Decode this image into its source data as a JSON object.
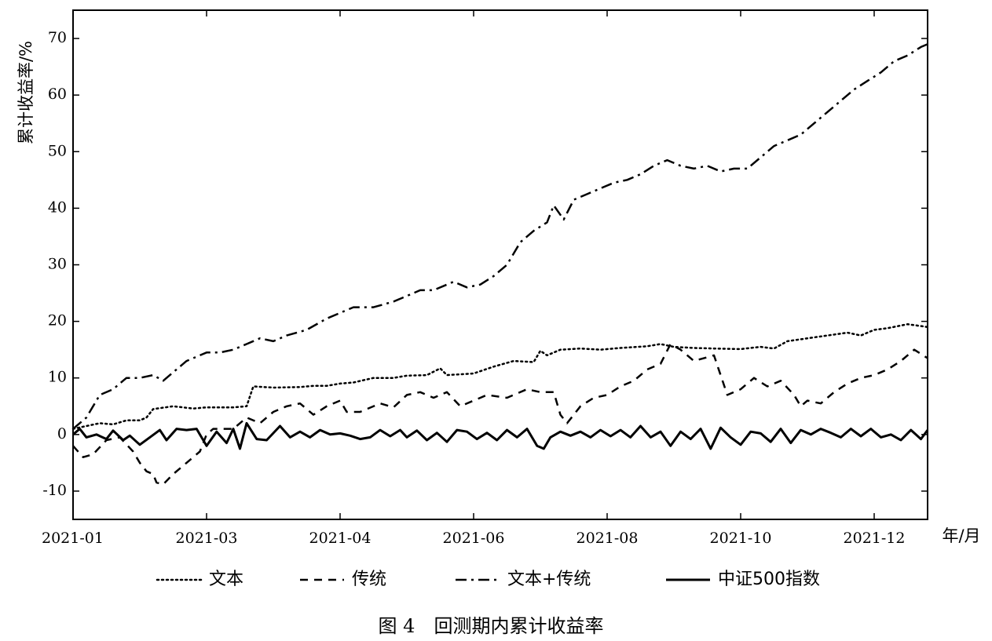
{
  "chart_data": {
    "type": "line",
    "title": "",
    "caption": "图 4　回测期内累计收益率",
    "xlabel": "年/月",
    "ylabel": "累计收益率/%",
    "ylim": [
      -15,
      75
    ],
    "xlim": [
      0,
      12.8
    ],
    "yticks": [
      -10,
      0,
      10,
      20,
      30,
      40,
      50,
      60,
      70
    ],
    "xticks": [
      {
        "value": 0,
        "label": "2021-01"
      },
      {
        "value": 2,
        "label": "2021-03"
      },
      {
        "value": 4,
        "label": "2021-04"
      },
      {
        "value": 6,
        "label": "2021-06"
      },
      {
        "value": 8,
        "label": "2021-08"
      },
      {
        "value": 10,
        "label": "2021-10"
      },
      {
        "value": 12,
        "label": "2021-12"
      }
    ],
    "grid": false,
    "legend_position": "bottom",
    "series": [
      {
        "name": "文本",
        "style": "dotted",
        "points": [
          [
            0,
            1
          ],
          [
            0.2,
            1.5
          ],
          [
            0.4,
            2
          ],
          [
            0.6,
            1.8
          ],
          [
            0.8,
            2.5
          ],
          [
            1.0,
            2.5
          ],
          [
            1.1,
            3
          ],
          [
            1.2,
            4.5
          ],
          [
            1.5,
            5
          ],
          [
            1.8,
            4.6
          ],
          [
            2.0,
            4.8
          ],
          [
            2.4,
            4.8
          ],
          [
            2.6,
            5
          ],
          [
            2.7,
            8.5
          ],
          [
            3.0,
            8.3
          ],
          [
            3.4,
            8.4
          ],
          [
            3.6,
            8.6
          ],
          [
            3.8,
            8.6
          ],
          [
            4.0,
            9.0
          ],
          [
            4.2,
            9.2
          ],
          [
            4.5,
            10
          ],
          [
            4.8,
            10
          ],
          [
            5.0,
            10.4
          ],
          [
            5.3,
            10.5
          ],
          [
            5.5,
            11.7
          ],
          [
            5.6,
            10.5
          ],
          [
            6.0,
            10.8
          ],
          [
            6.3,
            12
          ],
          [
            6.6,
            13
          ],
          [
            6.9,
            12.8
          ],
          [
            7.0,
            14.8
          ],
          [
            7.1,
            14
          ],
          [
            7.3,
            15
          ],
          [
            7.6,
            15.2
          ],
          [
            7.9,
            15.0
          ],
          [
            8.2,
            15.3
          ],
          [
            8.6,
            15.6
          ],
          [
            8.8,
            16
          ],
          [
            9.0,
            15.5
          ],
          [
            9.3,
            15.3
          ],
          [
            9.6,
            15.2
          ],
          [
            10.0,
            15.1
          ],
          [
            10.3,
            15.5
          ],
          [
            10.5,
            15.2
          ],
          [
            10.7,
            16.5
          ],
          [
            11.0,
            17
          ],
          [
            11.3,
            17.5
          ],
          [
            11.6,
            18
          ],
          [
            11.8,
            17.5
          ],
          [
            12.0,
            18.5
          ],
          [
            12.2,
            18.8
          ],
          [
            12.5,
            19.5
          ],
          [
            12.8,
            19
          ]
        ]
      },
      {
        "name": "传统",
        "style": "dashed",
        "points": [
          [
            0,
            -2
          ],
          [
            0.15,
            -4
          ],
          [
            0.3,
            -3.5
          ],
          [
            0.5,
            -1
          ],
          [
            0.7,
            -0.5
          ],
          [
            0.9,
            -3
          ],
          [
            1.0,
            -5
          ],
          [
            1.1,
            -6.5
          ],
          [
            1.2,
            -7
          ],
          [
            1.25,
            -8.5
          ],
          [
            1.35,
            -8.8
          ],
          [
            1.5,
            -7
          ],
          [
            1.7,
            -5
          ],
          [
            1.9,
            -3
          ],
          [
            2.0,
            0
          ],
          [
            2.1,
            1
          ],
          [
            2.4,
            1
          ],
          [
            2.6,
            3
          ],
          [
            2.8,
            2
          ],
          [
            3.0,
            4
          ],
          [
            3.2,
            5
          ],
          [
            3.4,
            5.5
          ],
          [
            3.6,
            3.5
          ],
          [
            3.8,
            5
          ],
          [
            4.0,
            6
          ],
          [
            4.1,
            4
          ],
          [
            4.3,
            4
          ],
          [
            4.6,
            5.5
          ],
          [
            4.8,
            4.8
          ],
          [
            5.0,
            7
          ],
          [
            5.2,
            7.5
          ],
          [
            5.4,
            6.5
          ],
          [
            5.6,
            7.5
          ],
          [
            5.8,
            5
          ],
          [
            6.0,
            6
          ],
          [
            6.2,
            7
          ],
          [
            6.5,
            6.5
          ],
          [
            6.8,
            8
          ],
          [
            7.0,
            7.5
          ],
          [
            7.2,
            7.5
          ],
          [
            7.3,
            3.5
          ],
          [
            7.4,
            2
          ],
          [
            7.6,
            5
          ],
          [
            7.8,
            6.5
          ],
          [
            8.0,
            7
          ],
          [
            8.2,
            8.5
          ],
          [
            8.4,
            9.5
          ],
          [
            8.6,
            11.5
          ],
          [
            8.8,
            12.5
          ],
          [
            8.95,
            16
          ],
          [
            9.1,
            15
          ],
          [
            9.3,
            13
          ],
          [
            9.6,
            14
          ],
          [
            9.8,
            7
          ],
          [
            10.0,
            8
          ],
          [
            10.2,
            10
          ],
          [
            10.4,
            8.5
          ],
          [
            10.6,
            9.5
          ],
          [
            10.8,
            7
          ],
          [
            10.9,
            5
          ],
          [
            11.0,
            6
          ],
          [
            11.2,
            5.5
          ],
          [
            11.4,
            7.5
          ],
          [
            11.6,
            9
          ],
          [
            11.8,
            10
          ],
          [
            12.0,
            10.5
          ],
          [
            12.2,
            11.5
          ],
          [
            12.4,
            13
          ],
          [
            12.6,
            15
          ],
          [
            12.8,
            13.5
          ]
        ]
      },
      {
        "name": "文本+传统",
        "style": "dashdot",
        "points": [
          [
            0,
            1
          ],
          [
            0.2,
            3
          ],
          [
            0.4,
            7
          ],
          [
            0.6,
            8
          ],
          [
            0.8,
            10
          ],
          [
            1.0,
            10
          ],
          [
            1.2,
            10.5
          ],
          [
            1.35,
            9.5
          ],
          [
            1.5,
            11
          ],
          [
            1.7,
            13
          ],
          [
            2.0,
            14.5
          ],
          [
            2.2,
            14.5
          ],
          [
            2.4,
            15
          ],
          [
            2.6,
            16
          ],
          [
            2.8,
            17
          ],
          [
            3.0,
            16.5
          ],
          [
            3.2,
            17.5
          ],
          [
            3.5,
            18.5
          ],
          [
            3.8,
            20.5
          ],
          [
            4.0,
            21.5
          ],
          [
            4.2,
            22.5
          ],
          [
            4.5,
            22.5
          ],
          [
            4.8,
            23.5
          ],
          [
            5.0,
            24.5
          ],
          [
            5.2,
            25.5
          ],
          [
            5.4,
            25.5
          ],
          [
            5.7,
            27
          ],
          [
            5.9,
            26
          ],
          [
            6.1,
            26.5
          ],
          [
            6.3,
            28
          ],
          [
            6.5,
            30
          ],
          [
            6.7,
            34
          ],
          [
            6.9,
            36
          ],
          [
            7.1,
            37.5
          ],
          [
            7.2,
            40.5
          ],
          [
            7.35,
            38
          ],
          [
            7.5,
            41.5
          ],
          [
            7.7,
            42.5
          ],
          [
            7.9,
            43.5
          ],
          [
            8.1,
            44.5
          ],
          [
            8.3,
            45
          ],
          [
            8.5,
            46
          ],
          [
            8.7,
            47.5
          ],
          [
            8.9,
            48.5
          ],
          [
            9.1,
            47.5
          ],
          [
            9.3,
            47
          ],
          [
            9.5,
            47.5
          ],
          [
            9.7,
            46.5
          ],
          [
            9.9,
            47
          ],
          [
            10.1,
            47
          ],
          [
            10.3,
            49
          ],
          [
            10.5,
            51
          ],
          [
            10.7,
            52
          ],
          [
            10.9,
            53
          ],
          [
            11.1,
            55
          ],
          [
            11.3,
            57
          ],
          [
            11.5,
            59
          ],
          [
            11.7,
            61
          ],
          [
            11.9,
            62.5
          ],
          [
            12.1,
            64
          ],
          [
            12.3,
            66
          ],
          [
            12.5,
            67
          ],
          [
            12.7,
            68.5
          ],
          [
            12.8,
            69
          ]
        ]
      },
      {
        "name": "中证500指数",
        "style": "solid",
        "points": [
          [
            0,
            0
          ],
          [
            0.1,
            1
          ],
          [
            0.2,
            -0.5
          ],
          [
            0.35,
            0
          ],
          [
            0.5,
            -0.8
          ],
          [
            0.6,
            0.7
          ],
          [
            0.75,
            -1
          ],
          [
            0.85,
            -0.2
          ],
          [
            1.0,
            -1.8
          ],
          [
            1.15,
            -0.5
          ],
          [
            1.3,
            0.8
          ],
          [
            1.4,
            -1
          ],
          [
            1.55,
            1
          ],
          [
            1.7,
            0.8
          ],
          [
            1.85,
            1
          ],
          [
            2.0,
            -2
          ],
          [
            2.15,
            0.5
          ],
          [
            2.3,
            -1.5
          ],
          [
            2.4,
            1
          ],
          [
            2.5,
            -2.5
          ],
          [
            2.6,
            2
          ],
          [
            2.75,
            -0.8
          ],
          [
            2.9,
            -1
          ],
          [
            3.1,
            1.5
          ],
          [
            3.25,
            -0.5
          ],
          [
            3.4,
            0.5
          ],
          [
            3.55,
            -0.5
          ],
          [
            3.7,
            0.8
          ],
          [
            3.85,
            0
          ],
          [
            4.0,
            0.2
          ],
          [
            4.15,
            -0.2
          ],
          [
            4.3,
            -0.8
          ],
          [
            4.45,
            -0.5
          ],
          [
            4.6,
            0.8
          ],
          [
            4.75,
            -0.3
          ],
          [
            4.9,
            0.8
          ],
          [
            5.0,
            -0.5
          ],
          [
            5.15,
            0.7
          ],
          [
            5.3,
            -1
          ],
          [
            5.45,
            0.3
          ],
          [
            5.6,
            -1.3
          ],
          [
            5.75,
            0.8
          ],
          [
            5.9,
            0.5
          ],
          [
            6.05,
            -0.8
          ],
          [
            6.2,
            0.3
          ],
          [
            6.35,
            -1
          ],
          [
            6.5,
            0.8
          ],
          [
            6.65,
            -0.5
          ],
          [
            6.8,
            1
          ],
          [
            6.95,
            -2
          ],
          [
            7.05,
            -2.5
          ],
          [
            7.15,
            -0.5
          ],
          [
            7.3,
            0.5
          ],
          [
            7.45,
            -0.2
          ],
          [
            7.6,
            0.5
          ],
          [
            7.75,
            -0.5
          ],
          [
            7.9,
            0.8
          ],
          [
            8.05,
            -0.3
          ],
          [
            8.2,
            0.8
          ],
          [
            8.35,
            -0.5
          ],
          [
            8.5,
            1.5
          ],
          [
            8.65,
            -0.5
          ],
          [
            8.8,
            0.5
          ],
          [
            8.95,
            -2
          ],
          [
            9.1,
            0.5
          ],
          [
            9.25,
            -0.8
          ],
          [
            9.4,
            1
          ],
          [
            9.55,
            -2.5
          ],
          [
            9.7,
            1.2
          ],
          [
            9.85,
            -0.5
          ],
          [
            10.0,
            -1.8
          ],
          [
            10.15,
            0.5
          ],
          [
            10.3,
            0.2
          ],
          [
            10.45,
            -1.3
          ],
          [
            10.6,
            1
          ],
          [
            10.75,
            -1.5
          ],
          [
            10.9,
            0.8
          ],
          [
            11.05,
            0
          ],
          [
            11.2,
            1
          ],
          [
            11.35,
            0.3
          ],
          [
            11.5,
            -0.5
          ],
          [
            11.65,
            1
          ],
          [
            11.8,
            -0.3
          ],
          [
            11.95,
            1
          ],
          [
            12.1,
            -0.5
          ],
          [
            12.25,
            0
          ],
          [
            12.4,
            -1
          ],
          [
            12.55,
            0.8
          ],
          [
            12.7,
            -0.8
          ],
          [
            12.8,
            0.8
          ]
        ]
      }
    ]
  }
}
